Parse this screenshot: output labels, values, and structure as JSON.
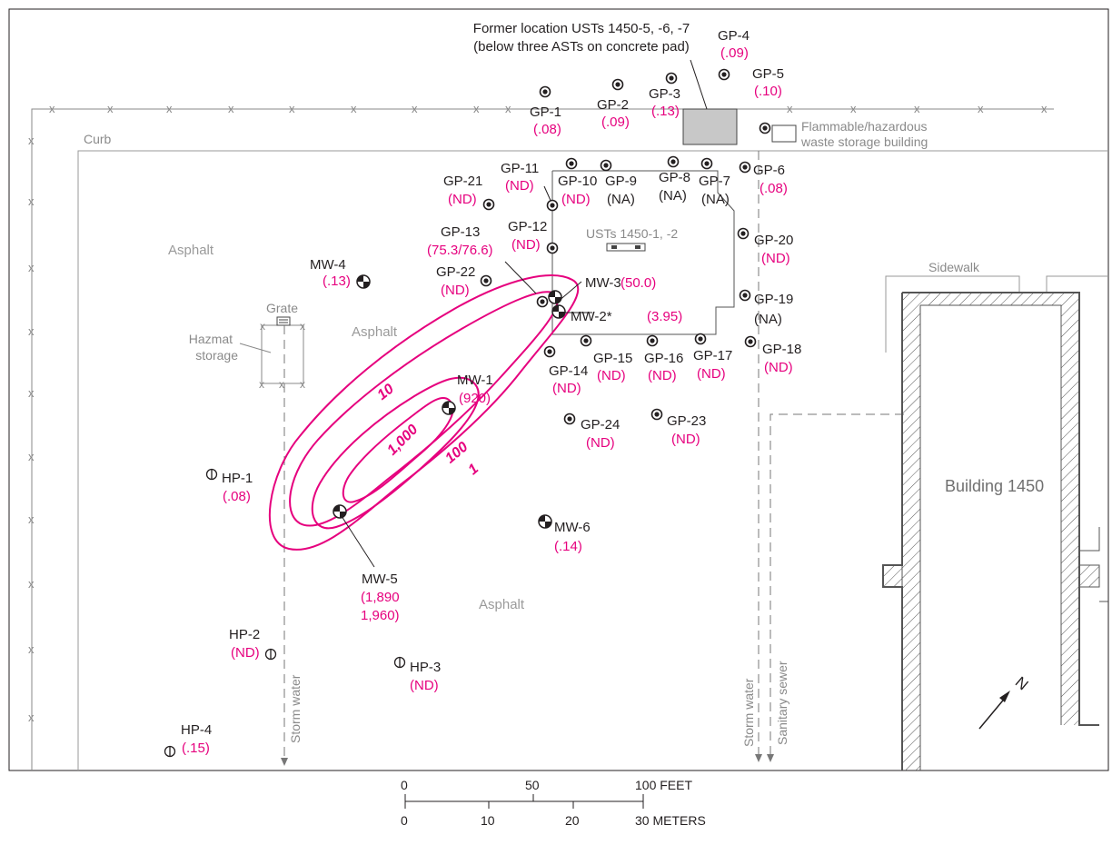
{
  "fence_mark": "x",
  "labels": {
    "curb": "Curb",
    "asphalt": "Asphalt",
    "sidewalk": "Sidewalk",
    "grate": "Grate",
    "hazmat_line1": "Hazmat",
    "hazmat_line2": "storage",
    "former_usts_line1": "Former location USTs 1450-5, -6, -7",
    "former_usts_line2": "(below three ASTs on concrete pad)",
    "flammable_line1": "Flammable/hazardous",
    "flammable_line2": "waste storage building",
    "usts_1450": "USTs 1450-1, -2",
    "building": "Building 1450",
    "storm_water": "Storm water",
    "sanitary_sewer": "Sanitary sewer",
    "north": "N"
  },
  "geoprobes": {
    "gp1": {
      "id": "GP-1",
      "value": "(.08)"
    },
    "gp2": {
      "id": "GP-2",
      "value": "(.09)"
    },
    "gp3": {
      "id": "GP-3",
      "value": "(.13)"
    },
    "gp4": {
      "id": "GP-4",
      "value": "(.09)"
    },
    "gp5": {
      "id": "GP-5",
      "value": "(.10)"
    },
    "gp6": {
      "id": "GP-6",
      "value": "(.08)"
    },
    "gp7": {
      "id": "GP-7",
      "value": "(NA)"
    },
    "gp8": {
      "id": "GP-8",
      "value": "(NA)"
    },
    "gp9": {
      "id": "GP-9",
      "value": "(NA)"
    },
    "gp10": {
      "id": "GP-10",
      "value": "(ND)"
    },
    "gp11": {
      "id": "GP-11",
      "value": "(ND)"
    },
    "gp12": {
      "id": "GP-12",
      "value": "(ND)"
    },
    "gp13": {
      "id": "GP-13",
      "value": "(75.3/76.6)"
    },
    "gp14": {
      "id": "GP-14",
      "value": "(ND)"
    },
    "gp15": {
      "id": "GP-15",
      "value": "(ND)"
    },
    "gp16": {
      "id": "GP-16",
      "value": "(ND)"
    },
    "gp17": {
      "id": "GP-17",
      "value": "(ND)"
    },
    "gp18": {
      "id": "GP-18",
      "value": "(ND)"
    },
    "gp19": {
      "id": "GP-19",
      "value": "(NA)"
    },
    "gp20": {
      "id": "GP-20",
      "value": "(ND)"
    },
    "gp21": {
      "id": "GP-21",
      "value": "(ND)"
    },
    "gp22": {
      "id": "GP-22",
      "value": "(ND)"
    },
    "gp23": {
      "id": "GP-23",
      "value": "(ND)"
    },
    "gp24": {
      "id": "GP-24",
      "value": "(ND)"
    }
  },
  "wells": {
    "mw1": {
      "id": "MW-1",
      "value": "(920)"
    },
    "mw2": {
      "id": "MW-2*",
      "value": "(3.95)"
    },
    "mw3": {
      "id": "MW-3",
      "value": "(50.0)"
    },
    "mw4": {
      "id": "MW-4",
      "value": "(.13)"
    },
    "mw5": {
      "id": "MW-5",
      "value1": "(1,890",
      "value2": "1,960)"
    },
    "mw6": {
      "id": "MW-6",
      "value": "(.14)"
    }
  },
  "hydropunch": {
    "hp1": {
      "id": "HP-1",
      "value": "(.08)"
    },
    "hp2": {
      "id": "HP-2",
      "value": "(ND)"
    },
    "hp3": {
      "id": "HP-3",
      "value": "(ND)"
    },
    "hp4": {
      "id": "HP-4",
      "value": "(.15)"
    }
  },
  "contours": [
    "1",
    "10",
    "100",
    "1,000"
  ],
  "scale_bar": {
    "feet_ticks": [
      "0",
      "50",
      "100 FEET"
    ],
    "meter_ticks": [
      "0",
      "10",
      "20",
      "30 METERS"
    ]
  },
  "colors": {
    "contour": "#e6007e",
    "text": "#231f20",
    "gray_text": "#8a8a8a",
    "pad": "#c8c8c8"
  }
}
